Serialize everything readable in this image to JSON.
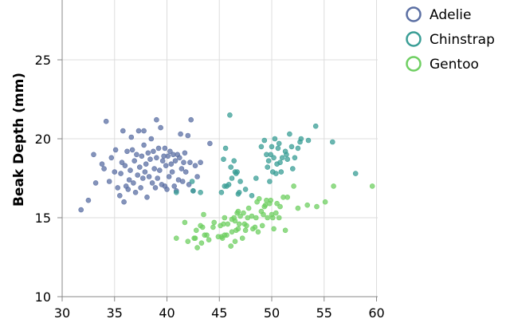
{
  "chart_data": {
    "type": "scatter",
    "ylabel": "Beak Depth (mm)",
    "xlabel": "",
    "xlim": [
      30,
      60
    ],
    "ylim": [
      10,
      25
    ],
    "x_ticks": [
      30,
      35,
      40,
      45,
      50,
      55,
      60
    ],
    "y_ticks": [
      10,
      15,
      20,
      25
    ],
    "grid": true,
    "legend_position": "top-right",
    "series": [
      {
        "name": "Adelie",
        "color": "#5b6fa3",
        "points": [
          [
            31.8,
            15.5
          ],
          [
            32.5,
            16.1
          ],
          [
            33.0,
            19.0
          ],
          [
            33.2,
            17.2
          ],
          [
            33.8,
            18.4
          ],
          [
            34.0,
            18.1
          ],
          [
            34.2,
            21.1
          ],
          [
            34.5,
            17.3
          ],
          [
            34.7,
            18.8
          ],
          [
            35.0,
            17.9
          ],
          [
            35.1,
            19.3
          ],
          [
            35.3,
            16.9
          ],
          [
            35.5,
            16.4
          ],
          [
            35.6,
            17.8
          ],
          [
            35.7,
            18.5
          ],
          [
            35.8,
            20.5
          ],
          [
            35.9,
            16.0
          ],
          [
            36.0,
            18.3
          ],
          [
            36.1,
            17.0
          ],
          [
            36.2,
            19.2
          ],
          [
            36.3,
            16.8
          ],
          [
            36.4,
            17.4
          ],
          [
            36.5,
            18.0
          ],
          [
            36.6,
            20.1
          ],
          [
            36.7,
            19.3
          ],
          [
            36.8,
            17.2
          ],
          [
            36.9,
            18.6
          ],
          [
            37.0,
            16.6
          ],
          [
            37.1,
            19.0
          ],
          [
            37.2,
            17.7
          ],
          [
            37.3,
            20.5
          ],
          [
            37.4,
            18.2
          ],
          [
            37.5,
            16.9
          ],
          [
            37.6,
            18.9
          ],
          [
            37.7,
            17.5
          ],
          [
            37.8,
            19.6
          ],
          [
            37.8,
            20.5
          ],
          [
            37.9,
            17.9
          ],
          [
            38.0,
            18.4
          ],
          [
            38.1,
            16.3
          ],
          [
            38.2,
            19.1
          ],
          [
            38.3,
            17.6
          ],
          [
            38.4,
            18.7
          ],
          [
            38.5,
            20.0
          ],
          [
            38.6,
            17.2
          ],
          [
            38.7,
            19.2
          ],
          [
            38.8,
            18.1
          ],
          [
            38.9,
            16.9
          ],
          [
            39.0,
            18.8
          ],
          [
            39.0,
            21.2
          ],
          [
            39.1,
            17.5
          ],
          [
            39.2,
            19.4
          ],
          [
            39.3,
            18.0
          ],
          [
            39.4,
            20.7
          ],
          [
            39.5,
            17.1
          ],
          [
            39.6,
            18.6
          ],
          [
            39.7,
            18.9
          ],
          [
            39.8,
            19.4
          ],
          [
            39.8,
            17.0
          ],
          [
            39.9,
            18.3
          ],
          [
            40.0,
            16.8
          ],
          [
            40.1,
            18.9
          ],
          [
            40.2,
            17.6
          ],
          [
            40.3,
            19.2
          ],
          [
            40.4,
            18.4
          ],
          [
            40.5,
            17.9
          ],
          [
            40.6,
            19.0
          ],
          [
            40.7,
            17.0
          ],
          [
            40.8,
            18.6
          ],
          [
            40.9,
            16.7
          ],
          [
            41.0,
            19.0
          ],
          [
            41.1,
            17.4
          ],
          [
            41.2,
            18.8
          ],
          [
            41.3,
            20.3
          ],
          [
            41.4,
            18.1
          ],
          [
            41.5,
            17.3
          ],
          [
            41.6,
            18.5
          ],
          [
            41.7,
            19.1
          ],
          [
            41.8,
            17.9
          ],
          [
            42.0,
            20.2
          ],
          [
            42.1,
            17.1
          ],
          [
            42.2,
            18.5
          ],
          [
            42.3,
            21.2
          ],
          [
            42.5,
            16.7
          ],
          [
            42.7,
            18.3
          ],
          [
            42.9,
            17.6
          ],
          [
            43.2,
            18.5
          ],
          [
            44.1,
            19.7
          ]
        ]
      },
      {
        "name": "Chinstrap",
        "color": "#3a9e96",
        "points": [
          [
            40.9,
            16.6
          ],
          [
            42.4,
            17.3
          ],
          [
            42.5,
            16.7
          ],
          [
            43.2,
            16.6
          ],
          [
            45.2,
            16.6
          ],
          [
            45.4,
            18.7
          ],
          [
            45.5,
            17.0
          ],
          [
            45.6,
            19.4
          ],
          [
            45.7,
            17.0
          ],
          [
            45.9,
            17.1
          ],
          [
            46.0,
            21.5
          ],
          [
            46.1,
            18.2
          ],
          [
            46.2,
            17.5
          ],
          [
            46.4,
            18.6
          ],
          [
            46.5,
            17.9
          ],
          [
            46.6,
            17.8
          ],
          [
            46.7,
            17.9
          ],
          [
            46.8,
            16.5
          ],
          [
            46.9,
            16.6
          ],
          [
            47.0,
            17.3
          ],
          [
            47.5,
            16.8
          ],
          [
            48.1,
            16.4
          ],
          [
            48.5,
            17.5
          ],
          [
            49.0,
            19.5
          ],
          [
            49.3,
            19.9
          ],
          [
            49.5,
            19.0
          ],
          [
            49.6,
            18.2
          ],
          [
            49.7,
            18.6
          ],
          [
            49.8,
            17.3
          ],
          [
            49.9,
            19.0
          ],
          [
            50.0,
            19.5
          ],
          [
            50.1,
            17.9
          ],
          [
            50.2,
            18.8
          ],
          [
            50.3,
            20.0
          ],
          [
            50.4,
            17.8
          ],
          [
            50.5,
            18.4
          ],
          [
            50.6,
            19.4
          ],
          [
            50.7,
            19.7
          ],
          [
            50.8,
            18.5
          ],
          [
            50.9,
            17.9
          ],
          [
            51.0,
            18.8
          ],
          [
            51.3,
            19.2
          ],
          [
            51.4,
            19.0
          ],
          [
            51.5,
            18.7
          ],
          [
            51.7,
            20.3
          ],
          [
            51.9,
            19.5
          ],
          [
            52.0,
            18.1
          ],
          [
            52.2,
            18.8
          ],
          [
            52.5,
            19.4
          ],
          [
            52.7,
            19.8
          ],
          [
            52.8,
            20.0
          ],
          [
            53.5,
            19.9
          ],
          [
            54.2,
            20.8
          ],
          [
            55.8,
            19.8
          ],
          [
            58.0,
            17.8
          ]
        ]
      },
      {
        "name": "Gentoo",
        "color": "#6fcf62",
        "points": [
          [
            40.9,
            13.7
          ],
          [
            41.7,
            14.7
          ],
          [
            42.0,
            13.5
          ],
          [
            42.6,
            13.7
          ],
          [
            42.7,
            13.7
          ],
          [
            42.8,
            14.2
          ],
          [
            42.9,
            13.1
          ],
          [
            43.2,
            14.5
          ],
          [
            43.3,
            13.4
          ],
          [
            43.4,
            14.4
          ],
          [
            43.5,
            15.2
          ],
          [
            43.6,
            13.9
          ],
          [
            43.8,
            13.9
          ],
          [
            44.0,
            13.6
          ],
          [
            44.4,
            14.4
          ],
          [
            44.5,
            14.7
          ],
          [
            44.9,
            13.8
          ],
          [
            45.1,
            14.5
          ],
          [
            45.2,
            13.8
          ],
          [
            45.3,
            13.7
          ],
          [
            45.4,
            14.6
          ],
          [
            45.5,
            13.9
          ],
          [
            45.5,
            15.0
          ],
          [
            45.7,
            13.9
          ],
          [
            45.8,
            14.6
          ],
          [
            46.1,
            13.2
          ],
          [
            46.2,
            14.1
          ],
          [
            46.2,
            14.9
          ],
          [
            46.4,
            15.0
          ],
          [
            46.5,
            13.5
          ],
          [
            46.5,
            14.8
          ],
          [
            46.6,
            14.2
          ],
          [
            46.7,
            15.3
          ],
          [
            46.8,
            14.3
          ],
          [
            46.8,
            15.4
          ],
          [
            46.9,
            14.6
          ],
          [
            47.0,
            15.1
          ],
          [
            47.2,
            13.7
          ],
          [
            47.3,
            15.3
          ],
          [
            47.4,
            14.6
          ],
          [
            47.5,
            14.2
          ],
          [
            47.6,
            14.5
          ],
          [
            47.7,
            15.0
          ],
          [
            47.8,
            15.6
          ],
          [
            48.1,
            15.1
          ],
          [
            48.2,
            14.3
          ],
          [
            48.4,
            14.4
          ],
          [
            48.5,
            15.0
          ],
          [
            48.6,
            16.0
          ],
          [
            48.7,
            14.1
          ],
          [
            48.8,
            16.2
          ],
          [
            49.0,
            15.4
          ],
          [
            49.1,
            14.5
          ],
          [
            49.2,
            15.2
          ],
          [
            49.3,
            15.7
          ],
          [
            49.4,
            15.8
          ],
          [
            49.5,
            16.1
          ],
          [
            49.6,
            15.0
          ],
          [
            49.8,
            15.9
          ],
          [
            49.9,
            16.1
          ],
          [
            50.0,
            15.2
          ],
          [
            50.1,
            15.0
          ],
          [
            50.2,
            14.3
          ],
          [
            50.4,
            15.3
          ],
          [
            50.5,
            15.9
          ],
          [
            50.7,
            15.0
          ],
          [
            50.8,
            15.7
          ],
          [
            51.1,
            16.3
          ],
          [
            51.3,
            14.2
          ],
          [
            51.5,
            16.3
          ],
          [
            52.1,
            17.0
          ],
          [
            52.5,
            15.6
          ],
          [
            53.4,
            15.8
          ],
          [
            54.3,
            15.7
          ],
          [
            55.1,
            16.0
          ],
          [
            55.9,
            17.0
          ],
          [
            59.6,
            17.0
          ]
        ]
      }
    ]
  }
}
